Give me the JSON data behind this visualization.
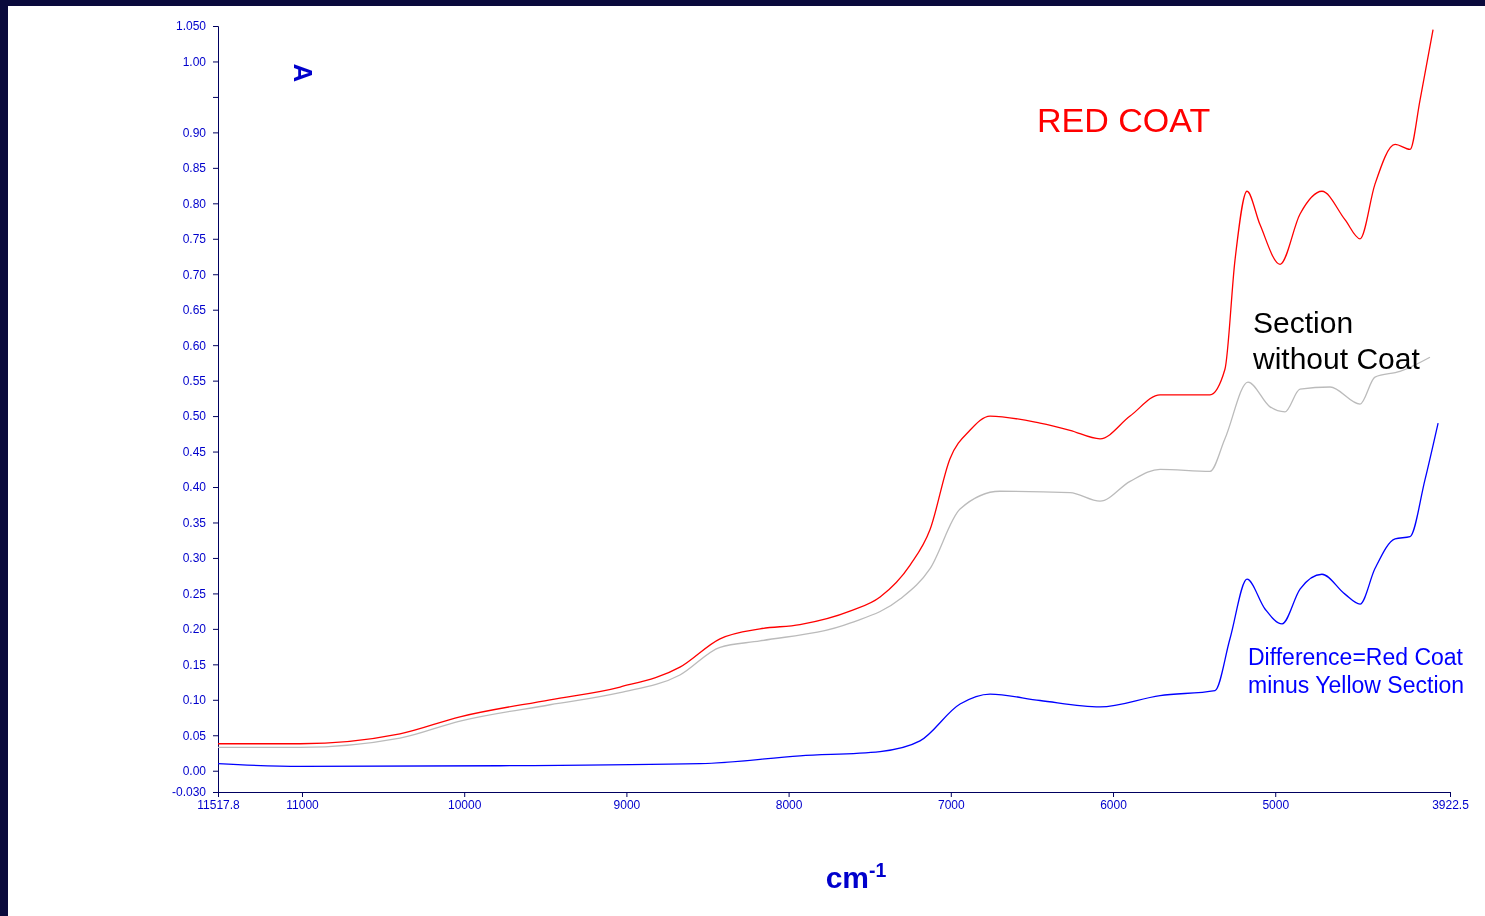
{
  "chart_data": {
    "type": "line",
    "xlabel": "cm$^{-1}$",
    "ylabel": "A",
    "xlim": [
      11517.8,
      3922.5
    ],
    "xticks": [
      11517.8,
      11000,
      10000,
      9000,
      8000,
      7000,
      6000,
      5000,
      3922.5
    ],
    "ylim": [
      -0.03,
      1.05
    ],
    "yticks": [
      {
        "value": -0.03,
        "label": "-0.030"
      },
      {
        "value": 0,
        "label": "0.00"
      },
      {
        "value": 0.05,
        "label": "0.05"
      },
      {
        "value": 0.1,
        "label": "0.10"
      },
      {
        "value": 0.15,
        "label": "0.15"
      },
      {
        "value": 0.2,
        "label": "0.20"
      },
      {
        "value": 0.25,
        "label": "0.25"
      },
      {
        "value": 0.3,
        "label": "0.30"
      },
      {
        "value": 0.35,
        "label": "0.35"
      },
      {
        "value": 0.4,
        "label": "0.40"
      },
      {
        "value": 0.45,
        "label": "0.45"
      },
      {
        "value": 0.5,
        "label": "0.50"
      },
      {
        "value": 0.55,
        "label": "0.55"
      },
      {
        "value": 0.6,
        "label": "0.60"
      },
      {
        "value": 0.65,
        "label": "0.65"
      },
      {
        "value": 0.7,
        "label": "0.70"
      },
      {
        "value": 0.75,
        "label": "0.75"
      },
      {
        "value": 0.8,
        "label": "0.80"
      },
      {
        "value": 0.85,
        "label": "0.85"
      },
      {
        "value": 0.9,
        "label": "0.90"
      },
      {
        "value": 0.95,
        "label": null
      },
      {
        "value": 1,
        "label": "1.00"
      },
      {
        "value": 1.05,
        "label": "1.050"
      }
    ],
    "grid": false,
    "marker": "none",
    "line_style": "solid",
    "series": [
      {
        "name": "RED COAT",
        "color": "#ff0000",
        "x": [
          11517.8,
          11012,
          10396,
          10026,
          9471,
          9039,
          8670,
          8423,
          8176,
          7930,
          7622,
          7436,
          7251,
          7128,
          7005,
          6882,
          6758,
          6450,
          6265,
          6080,
          5895,
          5710,
          5402,
          5310,
          5248,
          5174,
          5094,
          4970,
          4847,
          4712,
          4570,
          4477,
          4385,
          4261,
          4169,
          4107,
          4027
        ],
        "values": [
          0.038,
          0.038,
          0.052,
          0.076,
          0.1,
          0.118,
          0.146,
          0.186,
          0.2,
          0.206,
          0.225,
          0.245,
          0.29,
          0.34,
          0.44,
          0.48,
          0.5,
          0.49,
          0.48,
          0.468,
          0.5,
          0.53,
          0.53,
          0.566,
          0.72,
          0.817,
          0.77,
          0.714,
          0.785,
          0.817,
          0.777,
          0.75,
          0.827,
          0.883,
          0.876,
          0.946,
          1.045
        ]
      },
      {
        "name": "Section without Coat",
        "color": "#bbbbbb",
        "x": [
          11517.8,
          11012,
          10396,
          10026,
          9471,
          9039,
          8670,
          8423,
          8176,
          7622,
          7313,
          7128,
          6943,
          6697,
          6265,
          6080,
          5895,
          5710,
          5402,
          5310,
          5168,
          5032,
          4940,
          4847,
          4662,
          4477,
          4385,
          4231,
          4046
        ],
        "values": [
          0.033,
          0.033,
          0.046,
          0.07,
          0.093,
          0.11,
          0.135,
          0.174,
          0.183,
          0.208,
          0.242,
          0.285,
          0.369,
          0.394,
          0.392,
          0.38,
          0.408,
          0.425,
          0.422,
          0.468,
          0.548,
          0.513,
          0.506,
          0.538,
          0.541,
          0.517,
          0.555,
          0.563,
          0.583
        ]
      },
      {
        "name": "Difference=Red Coat minus Yellow Section",
        "color": "#0000ff",
        "x": [
          11517.8,
          11012,
          9779,
          8546,
          7930,
          7436,
          7190,
          6943,
          6758,
          6450,
          6080,
          5710,
          5371,
          5279,
          5174,
          5063,
          4958,
          4847,
          4712,
          4570,
          4477,
          4385,
          4261,
          4169,
          4077,
          3996
        ],
        "values": [
          0.01,
          0.006,
          0.007,
          0.01,
          0.021,
          0.027,
          0.042,
          0.094,
          0.108,
          0.099,
          0.09,
          0.106,
          0.113,
          0.186,
          0.27,
          0.228,
          0.207,
          0.256,
          0.277,
          0.249,
          0.235,
          0.285,
          0.327,
          0.33,
          0.41,
          0.49
        ]
      }
    ]
  }
}
